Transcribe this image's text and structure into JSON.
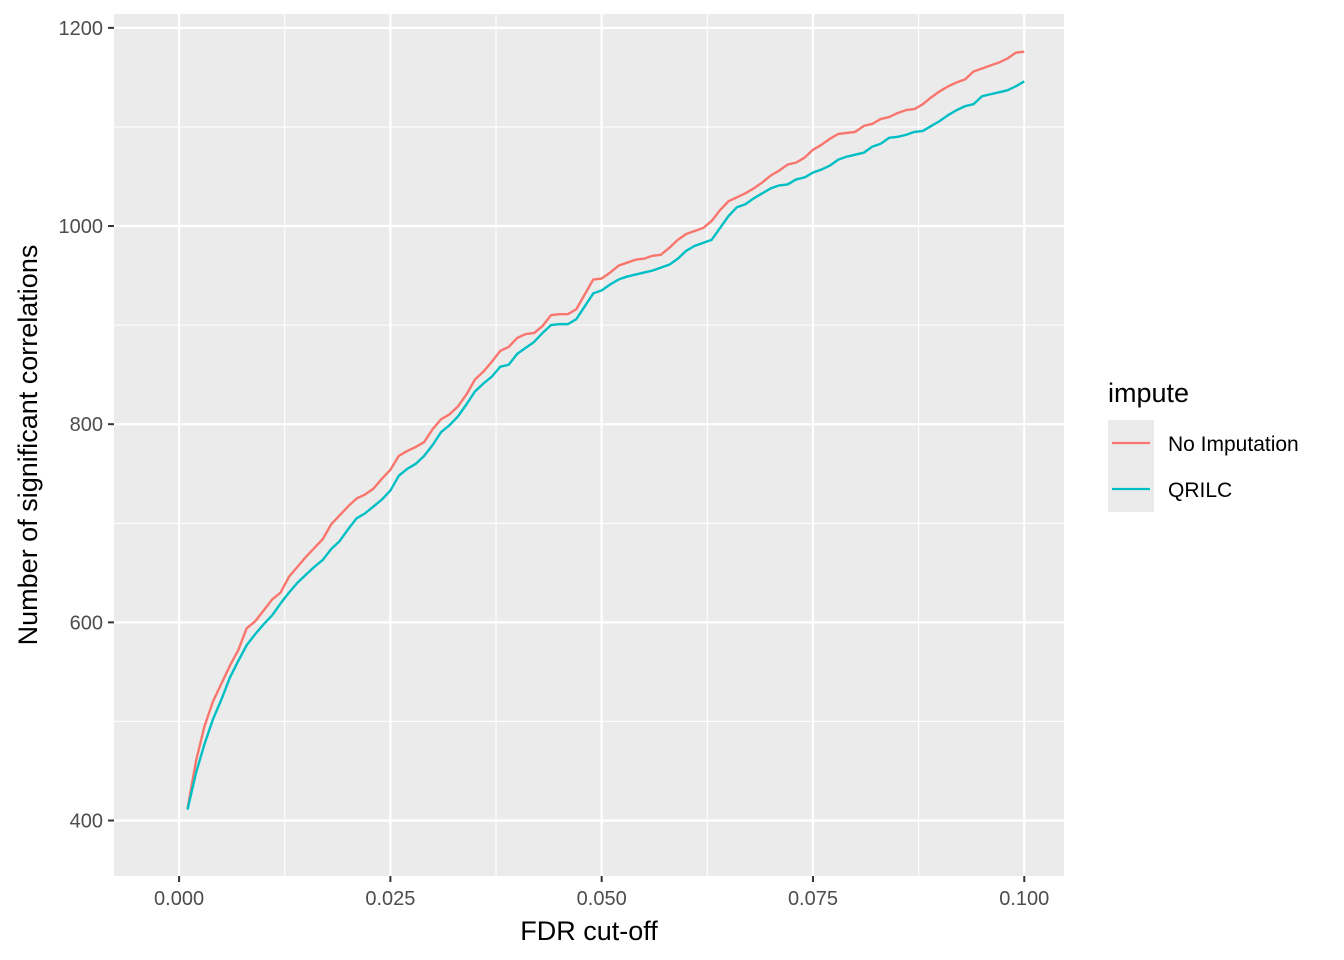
{
  "chart_data": {
    "type": "line",
    "xlabel": "FDR cut-off",
    "ylabel": "Number of significant correlations",
    "xlim": [
      -0.0077,
      0.1047
    ],
    "ylim": [
      344,
      1214
    ],
    "x_ticks": [
      0.0,
      0.025,
      0.05,
      0.075,
      0.1
    ],
    "x_tick_labels": [
      "0.000",
      "0.025",
      "0.050",
      "0.075",
      "0.100"
    ],
    "y_ticks": [
      400,
      600,
      800,
      1000,
      1200
    ],
    "y_tick_labels": [
      "400",
      "600",
      "800",
      "1000",
      "1200"
    ],
    "grid": true,
    "legend": {
      "title": "impute",
      "position": "right"
    },
    "x": [
      0.001,
      0.002,
      0.003,
      0.004,
      0.005,
      0.006,
      0.007,
      0.008,
      0.009,
      0.01,
      0.011,
      0.012,
      0.013,
      0.014,
      0.015,
      0.016,
      0.017,
      0.018,
      0.019,
      0.02,
      0.021,
      0.022,
      0.023,
      0.024,
      0.025,
      0.026,
      0.027,
      0.028,
      0.029,
      0.03,
      0.031,
      0.032,
      0.033,
      0.034,
      0.035,
      0.036,
      0.037,
      0.038,
      0.039,
      0.04,
      0.041,
      0.042,
      0.043,
      0.044,
      0.045,
      0.046,
      0.047,
      0.048,
      0.049,
      0.05,
      0.051,
      0.052,
      0.053,
      0.054,
      0.055,
      0.056,
      0.057,
      0.058,
      0.059,
      0.06,
      0.061,
      0.062,
      0.063,
      0.064,
      0.065,
      0.066,
      0.067,
      0.068,
      0.069,
      0.07,
      0.071,
      0.072,
      0.073,
      0.074,
      0.075,
      0.076,
      0.077,
      0.078,
      0.079,
      0.08,
      0.081,
      0.082,
      0.083,
      0.084,
      0.085,
      0.086,
      0.087,
      0.088,
      0.089,
      0.09,
      0.091,
      0.092,
      0.093,
      0.094,
      0.095,
      0.096,
      0.097,
      0.098,
      0.099,
      0.1
    ],
    "series": [
      {
        "name": "No Imputation",
        "color": "#F8766D",
        "values": [
          412,
          460,
          495,
          520,
          538,
          556,
          572,
          594,
          601,
          612,
          623,
          630,
          646,
          656,
          666,
          675,
          684,
          699,
          708,
          717,
          725,
          729,
          735,
          745,
          754,
          768,
          773,
          777,
          782,
          795,
          805,
          810,
          818,
          830,
          845,
          853,
          863,
          874,
          878,
          887,
          891,
          892,
          899,
          910,
          911,
          911,
          916,
          931,
          946,
          947,
          953,
          960,
          963,
          966,
          967,
          970,
          971,
          978,
          986,
          992,
          995,
          998,
          1005,
          1016,
          1025,
          1029,
          1033,
          1038,
          1044,
          1051,
          1056,
          1062,
          1064,
          1069,
          1077,
          1082,
          1088,
          1093,
          1094,
          1095,
          1101,
          1103,
          1108,
          1110,
          1114,
          1117,
          1118,
          1123,
          1130,
          1136,
          1141,
          1145,
          1148,
          1156,
          1159,
          1162,
          1165,
          1169,
          1175,
          1176
        ]
      },
      {
        "name": "QRILC",
        "color": "#00BFC4",
        "values": [
          411,
          448,
          477,
          502,
          522,
          544,
          561,
          577,
          588,
          598,
          607,
          619,
          630,
          640,
          648,
          656,
          663,
          674,
          682,
          694,
          705,
          710,
          717,
          724,
          733,
          748,
          755,
          760,
          768,
          779,
          792,
          799,
          808,
          820,
          833,
          841,
          848,
          858,
          860,
          871,
          877,
          883,
          892,
          900,
          901,
          901,
          906,
          919,
          932,
          935,
          941,
          946,
          949,
          951,
          953,
          955,
          958,
          961,
          967,
          975,
          980,
          983,
          986,
          998,
          1010,
          1019,
          1022,
          1028,
          1033,
          1038,
          1041,
          1042,
          1047,
          1049,
          1054,
          1057,
          1061,
          1067,
          1070,
          1072,
          1074,
          1080,
          1083,
          1089,
          1090,
          1092,
          1095,
          1096,
          1101,
          1106,
          1112,
          1117,
          1121,
          1123,
          1131,
          1133,
          1135,
          1137,
          1141,
          1146
        ]
      }
    ]
  }
}
